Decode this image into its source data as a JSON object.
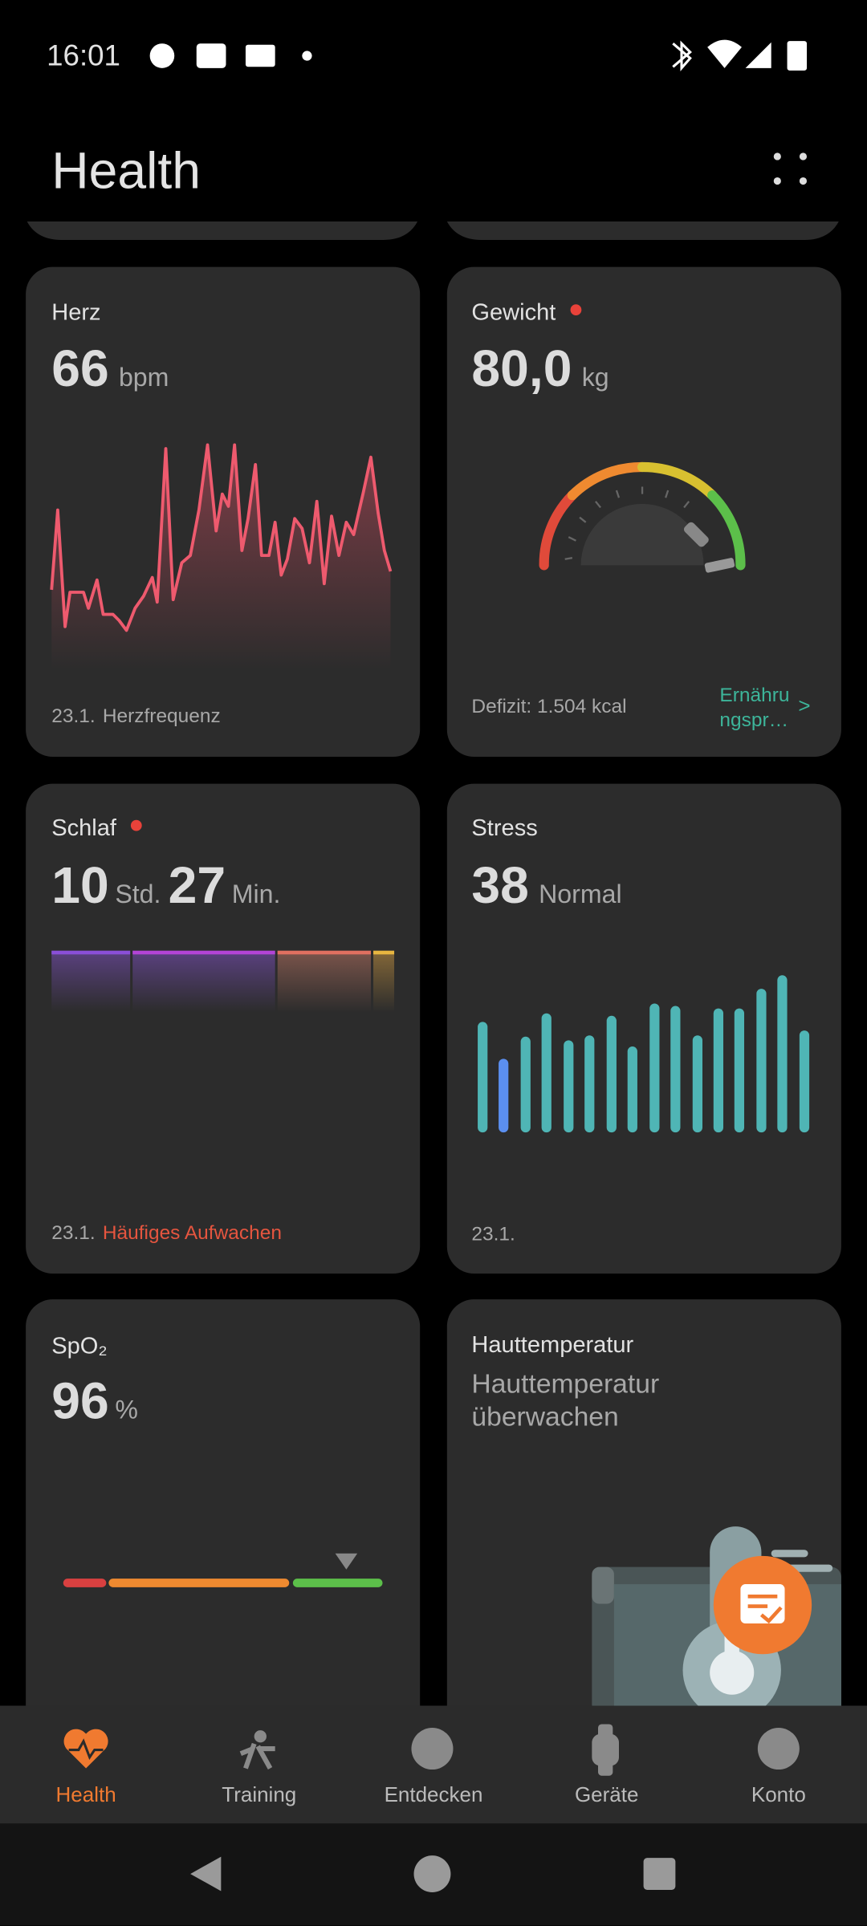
{
  "status": {
    "time": "16:01"
  },
  "header": {
    "title": "Health"
  },
  "cards": {
    "heart": {
      "title": "Herz",
      "value": "66",
      "unit": "bpm",
      "date": "23.1.",
      "footer": "Herzfrequenz"
    },
    "weight": {
      "title": "Gewicht",
      "value": "80,0",
      "unit": "kg",
      "footer": "Defizit: 1.504 kcal",
      "link": [
        "Ernähru",
        "ngspr…"
      ],
      "chevron": ">"
    },
    "sleep": {
      "title": "Schlaf",
      "hours": "10",
      "hours_unit": "Std.",
      "minutes": "27",
      "minutes_unit": "Min.",
      "date": "23.1.",
      "footer": "Häufiges Aufwachen"
    },
    "stress": {
      "title": "Stress",
      "value": "38",
      "unit": "Normal",
      "date": "23.1."
    },
    "spo2": {
      "title": "SpO₂",
      "value": "96",
      "unit": "%"
    },
    "skin": {
      "title": "Hauttemperatur",
      "text": [
        "Hauttemperatur",
        "überwachen"
      ]
    }
  },
  "nav": [
    "Health",
    "Training",
    "Entdecken",
    "Geräte",
    "Konto"
  ]
}
